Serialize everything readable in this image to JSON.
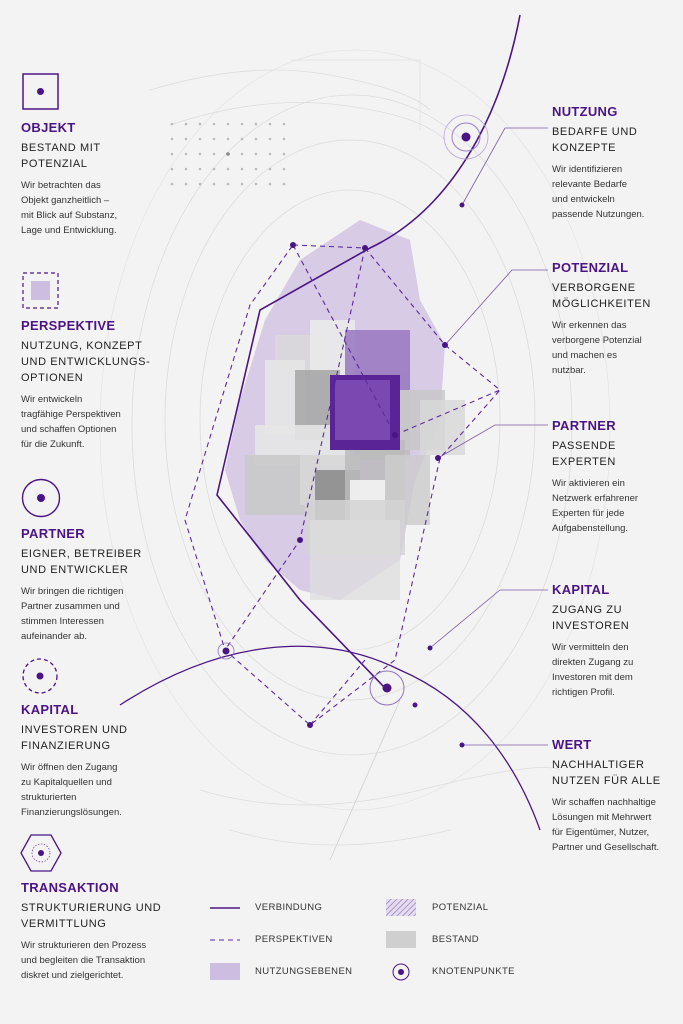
{
  "left": [
    {
      "title": "OBJEKT",
      "subtitle": "BESTAND MIT\nPOTENZIAL",
      "desc": "Wir betrachten das\nObjekt ganzheitlich –\nmit Blick auf Substanz,\nLage und Entwicklung.",
      "icon": "square-dot-icon"
    },
    {
      "title": "PERSPEKTIVE",
      "subtitle": "NUTZUNG, KONZEPT\nUND ENTWICKLUNGS-\nOPTIONEN",
      "desc": "Wir entwickeln\ntragfähige Perspektiven\nund schaffen Optionen\nfür die Zukunft.",
      "icon": "dashed-square-icon"
    },
    {
      "title": "PARTNER",
      "subtitle": "EIGNER, BETREIBER\nUND ENTWICKLER",
      "desc": "Wir bringen die richtigen\nPartner zusammen und\nstimmen Interessen\naufeinander ab.",
      "icon": "circle-dot-icon"
    },
    {
      "title": "KAPITAL",
      "subtitle": "INVESTOREN UND\nFINANZIERUNG",
      "desc": "Wir öffnen den Zugang\nzu Kapitalquellen und\nstrukturierten\nFinanzierungslösungen.",
      "icon": "dashed-circle-icon"
    },
    {
      "title": "TRANSAKTION",
      "subtitle": "STRUKTURIERUNG UND\nVERMITTLUNG",
      "desc": "Wir strukturieren den Prozess\nund begleiten die Transaktion\ndiskret und zielgerichtet.",
      "icon": "hexagon-icon"
    }
  ],
  "right": [
    {
      "title": "NUTZUNG",
      "subtitle": "BEDARFE UND\nKONZEPTE",
      "desc": "Wir identifizieren\nrelevante Bedarfe\nund entwickeln\npassende Nutzungen."
    },
    {
      "title": "POTENZIAL",
      "subtitle": "VERBORGENE\nMÖGLICHKEITEN",
      "desc": "Wir erkennen das\nverborgene Potenzial\nund machen es\nnutzbar."
    },
    {
      "title": "PARTNER",
      "subtitle": "PASSENDE\nEXPERTEN",
      "desc": "Wir aktivieren ein\nNetzwerk erfahrener\nExperten für jede\nAufgabenstellung."
    },
    {
      "title": "KAPITAL",
      "subtitle": "ZUGANG ZU\nINVESTOREN",
      "desc": "Wir vermitteln den\ndirekten Zugang zu\nInvestoren mit dem\nrichtigen Profil."
    },
    {
      "title": "WERT",
      "subtitle": "NACHHALTIGER\nNUTZEN FÜR ALLE",
      "desc": "Wir schaffen nachhaltige\nLösungen mit Mehrwert\nfür Eigentümer, Nutzer,\nPartner und Gesellschaft."
    }
  ],
  "legend": {
    "verbindung": "VERBINDUNG",
    "perspektiven": "PERSPEKTIVEN",
    "nutzungsebenen": "NUTZUNGSEBENEN",
    "potenzial": "POTENZIAL",
    "bestand": "BESTAND",
    "knotenpunkte": "KNOTENPUNKTE"
  },
  "colors": {
    "accent": "#4b1485",
    "lavender": "#cdbde0",
    "grey": "#cfcfcf",
    "background": "#f4f3f3"
  }
}
